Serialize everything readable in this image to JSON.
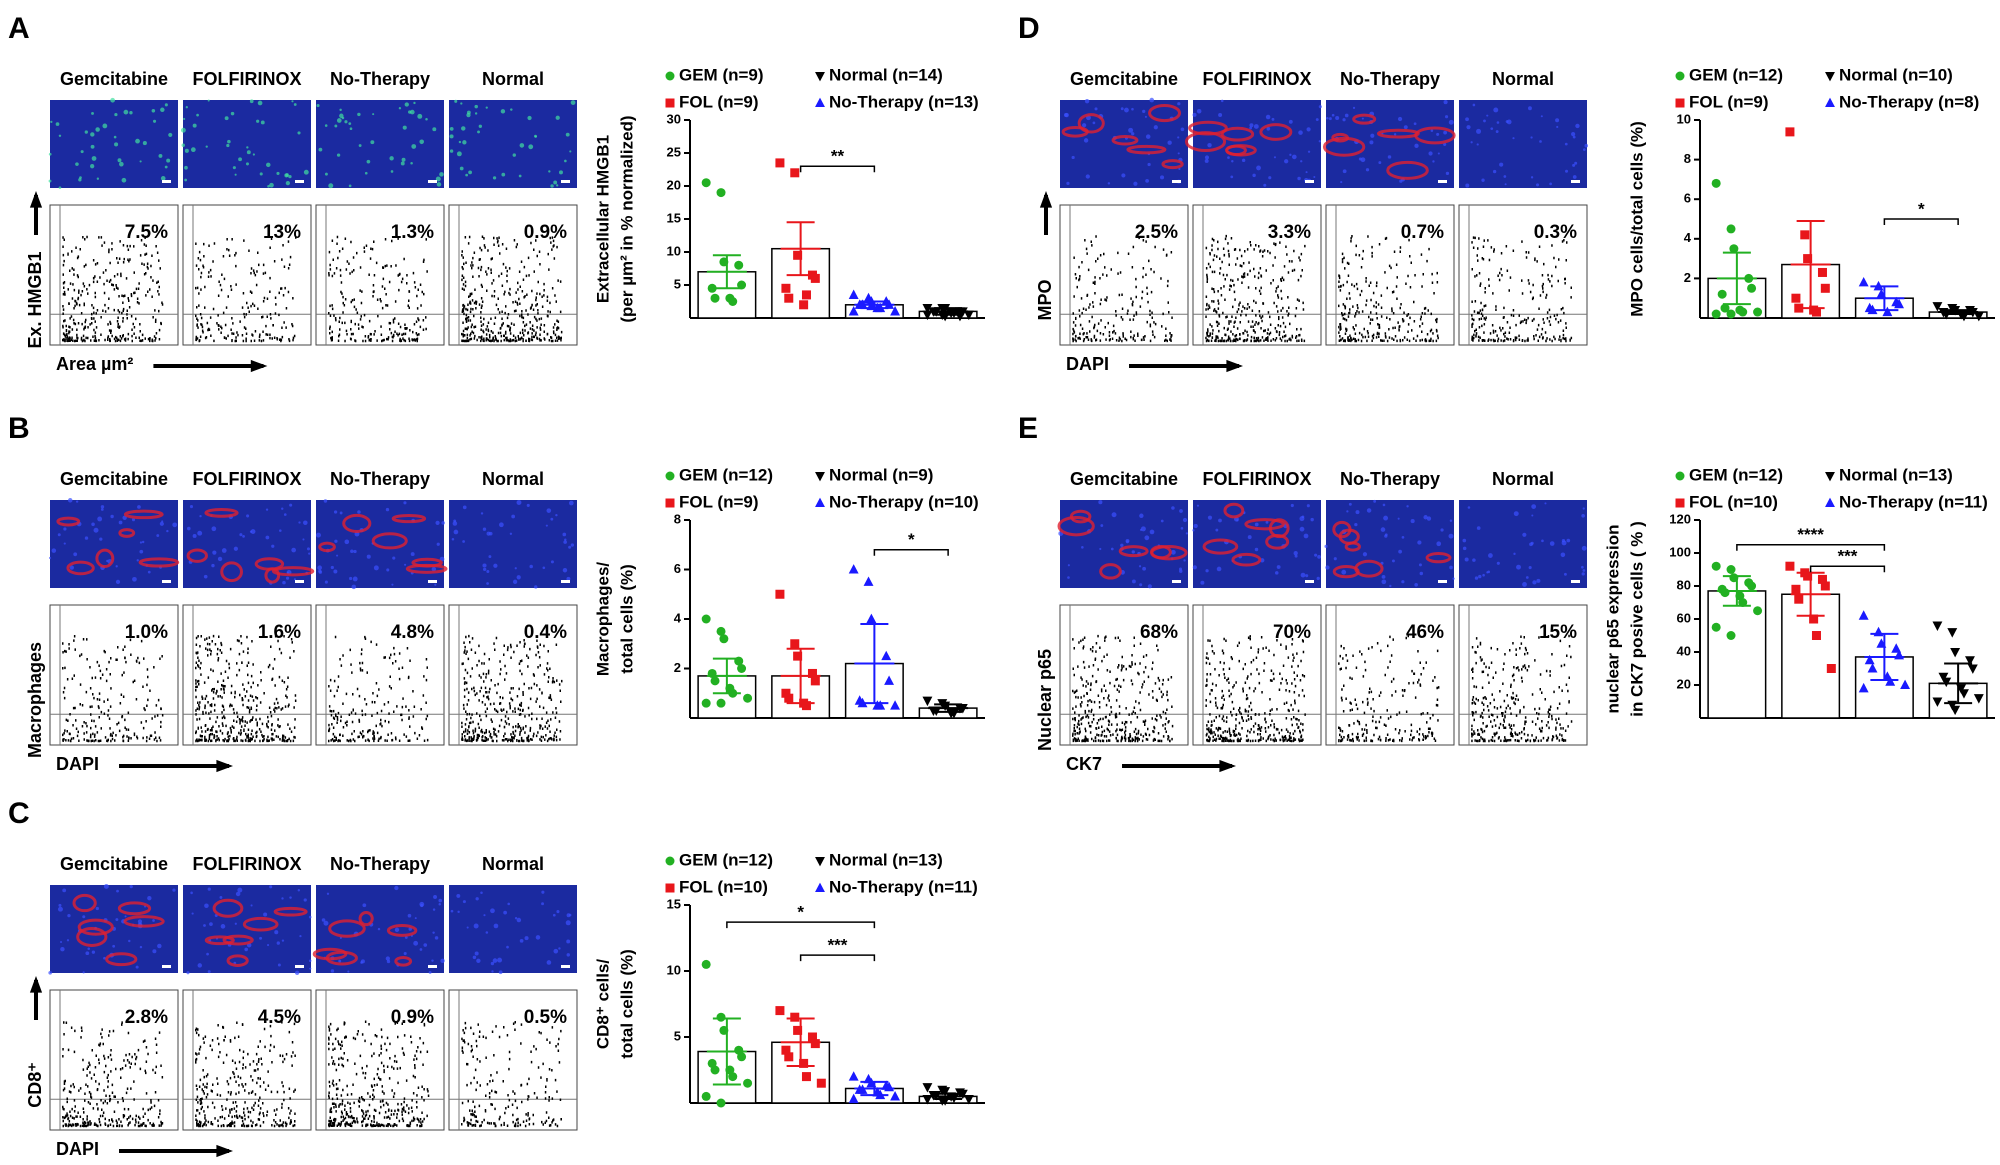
{
  "panels": [
    {
      "letter": "A",
      "image_labels": [
        "Gemcitabine",
        "FOLFIRINOX",
        "No-Therapy",
        "Normal"
      ],
      "percentages": [
        "7.5%",
        "13%",
        "1.3%",
        "0.9%"
      ],
      "flow_ylabel": "Ex. HMGB1",
      "flow_xlabel": "Area µm²"
    },
    {
      "letter": "B",
      "image_labels": [
        "Gemcitabine",
        "FOLFIRINOX",
        "No-Therapy",
        "Normal"
      ],
      "percentages": [
        "1.0%",
        "1.6%",
        "4.8%",
        "0.4%"
      ],
      "flow_ylabel": "Macrophages",
      "flow_xlabel": "DAPI"
    },
    {
      "letter": "C",
      "image_labels": [
        "Gemcitabine",
        "FOLFIRINOX",
        "No-Therapy",
        "Normal"
      ],
      "percentages": [
        "2.8%",
        "4.5%",
        "0.9%",
        "0.5%"
      ],
      "flow_ylabel": "CD8⁺",
      "flow_xlabel": "DAPI"
    },
    {
      "letter": "D",
      "image_labels": [
        "Gemcitabine",
        "FOLFIRINOX",
        "No-Therapy",
        "Normal"
      ],
      "percentages": [
        "2.5%",
        "3.3%",
        "0.7%",
        "0.3%"
      ],
      "flow_ylabel": "MPO",
      "flow_xlabel": "DAPI"
    },
    {
      "letter": "E",
      "image_labels": [
        "Gemcitabine",
        "FOLFIRINOX",
        "No-Therapy",
        "Normal"
      ],
      "percentages": [
        "68%",
        "70%",
        "46%",
        "15%"
      ],
      "flow_ylabel": "Nuclear p65",
      "flow_xlabel": "CK7"
    }
  ],
  "chart_data": [
    {
      "type": "bar",
      "ylabel": [
        "Extracellular HMGB1",
        "(per µm² in %  normalized)"
      ],
      "ylim": [
        0,
        30
      ],
      "yticks": [
        5,
        10,
        15,
        20,
        25,
        30
      ],
      "series": [
        {
          "name": "GEM (n=9)",
          "color": "#22b022",
          "marker": "circle",
          "values": [
            7
          ],
          "errors": [
            2.5
          ],
          "points": [
            20.5,
            19,
            8.5,
            8,
            5,
            4.5,
            3,
            3,
            2.5
          ]
        },
        {
          "name": "FOL (n=9)",
          "color": "#e8161b",
          "marker": "square",
          "values": [
            10.5
          ],
          "errors": [
            4
          ],
          "points": [
            23.5,
            22,
            9.5,
            6.5,
            6,
            4.5,
            3,
            2,
            3.5
          ]
        },
        {
          "name": "No-Therapy (n=13)",
          "color": "#1a1aff",
          "marker": "triangle",
          "values": [
            2
          ],
          "errors": [
            0.5
          ],
          "points": [
            3.5,
            3,
            2.5,
            2.5,
            2,
            2,
            2,
            1.5,
            1.5,
            1,
            1,
            2.8,
            1.8
          ]
        },
        {
          "name": "Normal (n=14)",
          "color": "#000000",
          "marker": "triangle-down",
          "values": [
            1
          ],
          "errors": [
            0.5
          ],
          "points": [
            1.5,
            1.5,
            1.5,
            1,
            1,
            1,
            1,
            0.8,
            0.8,
            0.5,
            0.5,
            0.5,
            0.3,
            0.3
          ]
        }
      ],
      "annotations": [
        {
          "text": "**",
          "from": 1,
          "to": 2,
          "y": 23
        }
      ]
    },
    {
      "type": "bar",
      "ylabel": [
        "Macrophages/",
        "total cells (%)"
      ],
      "ylim": [
        0,
        8
      ],
      "yticks": [
        2,
        4,
        6,
        8
      ],
      "series": [
        {
          "name": "GEM (n=12)",
          "color": "#22b022",
          "marker": "circle",
          "values": [
            1.7
          ],
          "errors": [
            0.7
          ],
          "points": [
            4,
            3.5,
            3.2,
            2.3,
            2,
            1.8,
            1.5,
            1.2,
            1,
            0.8,
            0.6,
            0.6
          ]
        },
        {
          "name": "FOL (n=9)",
          "color": "#e8161b",
          "marker": "square",
          "values": [
            1.7
          ],
          "errors": [
            1.1
          ],
          "points": [
            5,
            3,
            2.5,
            1.8,
            1.5,
            1,
            0.8,
            0.6,
            0.5
          ]
        },
        {
          "name": "No-Therapy (n=10)",
          "color": "#1a1aff",
          "marker": "triangle",
          "values": [
            2.2
          ],
          "errors": [
            1.6
          ],
          "points": [
            6,
            5.5,
            4,
            2.5,
            1.5,
            0.7,
            0.6,
            0.5,
            0.5,
            0.5
          ]
        },
        {
          "name": "Normal (n=9)",
          "color": "#000000",
          "marker": "triangle-down",
          "values": [
            0.4
          ],
          "errors": [
            0.15
          ],
          "points": [
            0.7,
            0.6,
            0.5,
            0.4,
            0.4,
            0.3,
            0.3,
            0.2,
            0.2
          ]
        }
      ],
      "annotations": [
        {
          "text": "*",
          "from": 2,
          "to": 3,
          "y": 6.8
        }
      ]
    },
    {
      "type": "bar",
      "ylabel": [
        "CD8⁺ cells/",
        "total cells (%)"
      ],
      "ylim": [
        0,
        15
      ],
      "yticks": [
        5,
        10,
        15
      ],
      "series": [
        {
          "name": "GEM (n=12)",
          "color": "#22b022",
          "marker": "circle",
          "values": [
            3.9
          ],
          "errors": [
            2.5
          ],
          "points": [
            10.5,
            6.5,
            5.5,
            4,
            3.5,
            3,
            2.5,
            2.5,
            2,
            1.5,
            0.5,
            0
          ]
        },
        {
          "name": "FOL (n=10)",
          "color": "#e8161b",
          "marker": "square",
          "values": [
            4.6
          ],
          "errors": [
            1.8
          ],
          "points": [
            7,
            6.5,
            5.5,
            5,
            4.5,
            4,
            3.5,
            3,
            2,
            1.5
          ]
        },
        {
          "name": "No-Therapy (n=11)",
          "color": "#1a1aff",
          "marker": "triangle",
          "values": [
            1.1
          ],
          "errors": [
            0.5
          ],
          "points": [
            2,
            1.8,
            1.5,
            1.3,
            1.2,
            1,
            1,
            0.8,
            0.6,
            0.5,
            0.3
          ]
        },
        {
          "name": "Normal (n=13)",
          "color": "#000000",
          "marker": "triangle-down",
          "values": [
            0.5
          ],
          "errors": [
            0.2
          ],
          "points": [
            1.2,
            1,
            0.9,
            0.8,
            0.7,
            0.6,
            0.6,
            0.5,
            0.4,
            0.3,
            0.3,
            0.2,
            0.2
          ]
        }
      ],
      "annotations": [
        {
          "text": "*",
          "from": 0,
          "to": 2,
          "y": 13.7
        },
        {
          "text": "***",
          "from": 1,
          "to": 2,
          "y": 11.2
        }
      ]
    },
    {
      "type": "bar",
      "ylabel": [
        "MPO cells/total cells (%)"
      ],
      "ylim": [
        0,
        10
      ],
      "yticks": [
        2,
        4,
        6,
        8,
        10
      ],
      "series": [
        {
          "name": "GEM (n=12)",
          "color": "#22b022",
          "marker": "circle",
          "values": [
            2
          ],
          "errors": [
            1.3
          ],
          "points": [
            6.8,
            4.5,
            3.5,
            2,
            1.5,
            1.2,
            0.5,
            0.4,
            0.3,
            0.3,
            0.2,
            0.2
          ]
        },
        {
          "name": "FOL (n=9)",
          "color": "#e8161b",
          "marker": "square",
          "values": [
            2.7
          ],
          "errors": [
            2.2
          ],
          "points": [
            9.4,
            4.2,
            3,
            2.3,
            1.5,
            1,
            0.5,
            0.4,
            0.3
          ]
        },
        {
          "name": "No-Therapy (n=8)",
          "color": "#1a1aff",
          "marker": "triangle",
          "values": [
            1
          ],
          "errors": [
            0.6
          ],
          "points": [
            1.8,
            1.6,
            1.2,
            0.8,
            0.7,
            0.5,
            0.4,
            0.3
          ]
        },
        {
          "name": "Normal (n=10)",
          "color": "#000000",
          "marker": "triangle-down",
          "values": [
            0.3
          ],
          "errors": [
            0.1
          ],
          "points": [
            0.6,
            0.5,
            0.4,
            0.4,
            0.3,
            0.3,
            0.2,
            0.2,
            0.1,
            0.1
          ]
        }
      ],
      "annotations": [
        {
          "text": "*",
          "from": 2,
          "to": 3,
          "y": 5
        }
      ]
    },
    {
      "type": "bar",
      "ylabel": [
        "nuclear p65 expression",
        "in CK7 posive cells ( % )"
      ],
      "ylim": [
        0,
        120
      ],
      "yticks": [
        20,
        40,
        60,
        80,
        100,
        120
      ],
      "series": [
        {
          "name": "GEM (n=12)",
          "color": "#22b022",
          "marker": "circle",
          "values": [
            77
          ],
          "errors": [
            9
          ],
          "points": [
            92,
            90,
            85,
            82,
            80,
            78,
            76,
            74,
            70,
            65,
            55,
            50
          ]
        },
        {
          "name": "FOL (n=10)",
          "color": "#e8161b",
          "marker": "square",
          "values": [
            75
          ],
          "errors": [
            13
          ],
          "points": [
            92,
            88,
            86,
            84,
            80,
            78,
            72,
            60,
            50,
            30
          ]
        },
        {
          "name": "No-Therapy (n=11)",
          "color": "#1a1aff",
          "marker": "triangle",
          "values": [
            37
          ],
          "errors": [
            14
          ],
          "points": [
            62,
            52,
            45,
            42,
            38,
            35,
            30,
            25,
            22,
            20,
            18
          ]
        },
        {
          "name": "Normal (n=13)",
          "color": "#000000",
          "marker": "triangle-down",
          "values": [
            21
          ],
          "errors": [
            12
          ],
          "points": [
            56,
            52,
            40,
            35,
            30,
            25,
            22,
            18,
            15,
            12,
            10,
            8,
            5
          ]
        }
      ],
      "annotations": [
        {
          "text": "****",
          "from": 0,
          "to": 2,
          "y": 105
        },
        {
          "text": "***",
          "from": 1,
          "to": 2,
          "y": 92
        }
      ]
    }
  ]
}
